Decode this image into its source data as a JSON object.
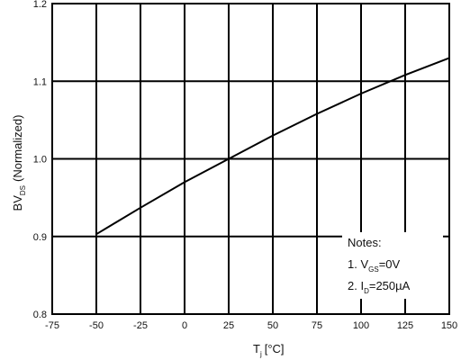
{
  "chart_data": {
    "type": "line",
    "xlabel": {
      "main": "T",
      "sub": "j",
      "unit": "[°C]"
    },
    "ylabel": {
      "main": "BV",
      "sub": "DS",
      "suffix": "(Normalized)"
    },
    "xlim": [
      -75,
      150
    ],
    "ylim": [
      0.8,
      1.2
    ],
    "x_ticks": [
      "-75",
      "-50",
      "-25",
      "0",
      "25",
      "50",
      "75",
      "100",
      "125",
      "150"
    ],
    "y_ticks": [
      "0.8",
      "0.9",
      "1.0",
      "1.1",
      "1.2"
    ],
    "grid": true,
    "series": [
      {
        "x": [
          -50,
          -25,
          0,
          25,
          50,
          75,
          100,
          125,
          150
        ],
        "y": [
          0.903,
          0.937,
          0.97,
          1.0,
          1.03,
          1.058,
          1.084,
          1.108,
          1.13
        ]
      }
    ],
    "notes": {
      "title": "Notes:",
      "lines": [
        {
          "prefix": "1. V",
          "sub": "GS",
          "suffix": "=0V"
        },
        {
          "prefix": "2. I",
          "sub": "D",
          "suffix": "=250µA"
        }
      ]
    }
  }
}
